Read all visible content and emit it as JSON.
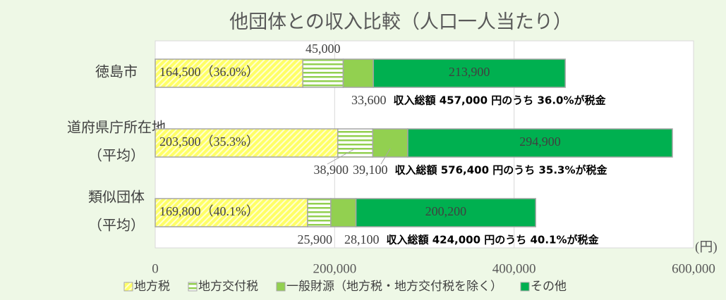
{
  "chart_data": {
    "type": "stacked_barh",
    "title": "他団体との収入比較（人口一人当たり）",
    "categories": [
      [
        "徳島市"
      ],
      [
        "道府県庁所在地",
        "（平均）"
      ],
      [
        "類似団体",
        "（平均）"
      ]
    ],
    "series": [
      {
        "name": "地方税",
        "color": "#ffff66",
        "pattern": "diagonal",
        "values": [
          164500,
          203500,
          169800
        ],
        "value_labels": [
          "164,500（36.0%）",
          "203,500（35.3%）",
          "169,800（40.1%）"
        ]
      },
      {
        "name": "地方交付税",
        "color": "#92d050",
        "pattern": "horizontal",
        "values": [
          45000,
          38900,
          25900
        ],
        "value_labels": [
          "45,000",
          "38,900",
          "25,900"
        ]
      },
      {
        "name": "一般財源（地方税・地方交付税を除く）",
        "color": "#92d050",
        "values": [
          33600,
          39100,
          28100
        ],
        "value_labels": [
          "33,600",
          "39,100",
          "28,100"
        ]
      },
      {
        "name": "その他",
        "color": "#00b050",
        "values": [
          213900,
          294900,
          200200
        ],
        "value_labels": [
          "213,900",
          "294,900",
          "200,200"
        ]
      }
    ],
    "annotations": [
      "収入総額 457,000 円のうち 36.0%が税金",
      "収入総額 576,400 円のうち 35.3%が税金",
      "収入総額 424,000 円のうち 40.1%が税金"
    ],
    "x_unit": "(円)",
    "xlim": [
      0,
      600000
    ],
    "xticks": [
      0,
      {
        "value": 200000,
        "label": "200,000"
      },
      {
        "value": 400000,
        "label": "400,000"
      },
      {
        "value": 600000,
        "label": "600,000"
      }
    ],
    "grid": true
  }
}
